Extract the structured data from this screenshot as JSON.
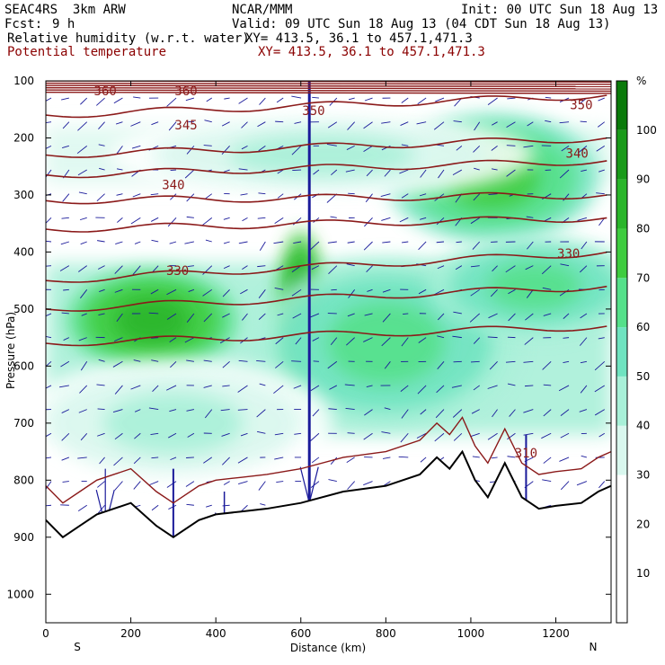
{
  "header": {
    "model": "SEAC4RS  3km ARW",
    "center": "NCAR/MMM",
    "init": "Init: 00 UTC Sun 18 Aug 13",
    "fcst_label": "Fcst:",
    "fcst_value": "9 h",
    "valid": "Valid: 09 UTC Sun 18 Aug 13 (04 CDT Sun 18 Aug 13)",
    "field1": "Relative humidity (w.r.t. water)",
    "field1_xy": "XY= 413.5, 36.1 to 457.1,471.3",
    "field2": "Potential temperature",
    "field2_xy": "XY= 413.5, 36.1 to 457.1,471.3"
  },
  "chart_data": {
    "type": "heatmap",
    "xlabel": "Distance (km)",
    "ylabel": "Pressure (hPa)",
    "xlim": [
      0,
      1330
    ],
    "ylim": [
      1050,
      100
    ],
    "x_ticks": [
      0,
      200,
      400,
      600,
      800,
      1000,
      1200
    ],
    "y_ticks": [
      100,
      200,
      300,
      400,
      500,
      600,
      700,
      800,
      900,
      1000
    ],
    "x_end_labels": {
      "left": "S",
      "right": "N"
    },
    "colorbar": {
      "unit": "%",
      "ticks": [
        10,
        20,
        30,
        40,
        50,
        60,
        70,
        80,
        90,
        100
      ],
      "levels": [
        30,
        40,
        50,
        60,
        70,
        80,
        90,
        100
      ],
      "colors": [
        "#ffffff",
        "#d9f7ee",
        "#a8f0d8",
        "#6fe3c0",
        "#55e08a",
        "#3fcc3f",
        "#2ab52a",
        "#1a9a1a",
        "#0a7a0a"
      ]
    },
    "rh_blobs": [
      {
        "x": 250,
        "p": 520,
        "rx": 160,
        "rp": 70,
        "rh": 85
      },
      {
        "x": 600,
        "p": 500,
        "rx": 40,
        "rp": 110,
        "rh": 90
      },
      {
        "x": 800,
        "p": 560,
        "rx": 250,
        "rp": 120,
        "rh": 65
      },
      {
        "x": 1050,
        "p": 270,
        "rx": 200,
        "rp": 90,
        "rh": 70
      },
      {
        "x": 650,
        "p": 230,
        "rx": 400,
        "rp": 60,
        "rh": 45
      },
      {
        "x": 1150,
        "p": 460,
        "rx": 200,
        "rp": 70,
        "rh": 60
      },
      {
        "x": 300,
        "p": 700,
        "rx": 300,
        "rp": 90,
        "rh": 45
      }
    ],
    "theta_labels": [
      {
        "value": "360",
        "x": 140,
        "p": 125
      },
      {
        "value": "360",
        "x": 330,
        "p": 125
      },
      {
        "value": "350",
        "x": 1260,
        "p": 150
      },
      {
        "value": "350",
        "x": 630,
        "p": 160
      },
      {
        "value": "345",
        "x": 330,
        "p": 185
      },
      {
        "value": "340",
        "x": 1250,
        "p": 235
      },
      {
        "value": "340",
        "x": 300,
        "p": 290
      },
      {
        "value": "330",
        "x": 310,
        "p": 440
      },
      {
        "value": "330",
        "x": 1230,
        "p": 410
      },
      {
        "value": "310",
        "x": 1130,
        "p": 760
      }
    ],
    "theta_lines": [
      {
        "name": "theta-line-360",
        "p_left": 160,
        "p_right": 125
      },
      {
        "name": "theta-line-350",
        "p_left": 230,
        "p_right": 200
      },
      {
        "name": "theta-line-345",
        "p_left": 265,
        "p_right": 240
      },
      {
        "name": "theta-line-340",
        "p_left": 310,
        "p_right": 300
      },
      {
        "name": "theta-line-335",
        "p_left": 360,
        "p_right": 340
      },
      {
        "name": "theta-line-330",
        "p_left": 450,
        "p_right": 400
      },
      {
        "name": "theta-line-325",
        "p_left": 500,
        "p_right": 460
      },
      {
        "name": "theta-line-320",
        "p_left": 560,
        "p_right": 530
      }
    ],
    "terrain": [
      [
        0,
        870
      ],
      [
        40,
        900
      ],
      [
        80,
        880
      ],
      [
        120,
        860
      ],
      [
        160,
        850
      ],
      [
        200,
        840
      ],
      [
        260,
        880
      ],
      [
        300,
        900
      ],
      [
        360,
        870
      ],
      [
        400,
        860
      ],
      [
        460,
        855
      ],
      [
        520,
        850
      ],
      [
        600,
        840
      ],
      [
        700,
        820
      ],
      [
        800,
        810
      ],
      [
        880,
        790
      ],
      [
        920,
        760
      ],
      [
        950,
        780
      ],
      [
        980,
        750
      ],
      [
        1010,
        800
      ],
      [
        1040,
        830
      ],
      [
        1080,
        770
      ],
      [
        1120,
        830
      ],
      [
        1160,
        850
      ],
      [
        1200,
        845
      ],
      [
        1260,
        840
      ],
      [
        1300,
        820
      ],
      [
        1330,
        810
      ]
    ]
  }
}
